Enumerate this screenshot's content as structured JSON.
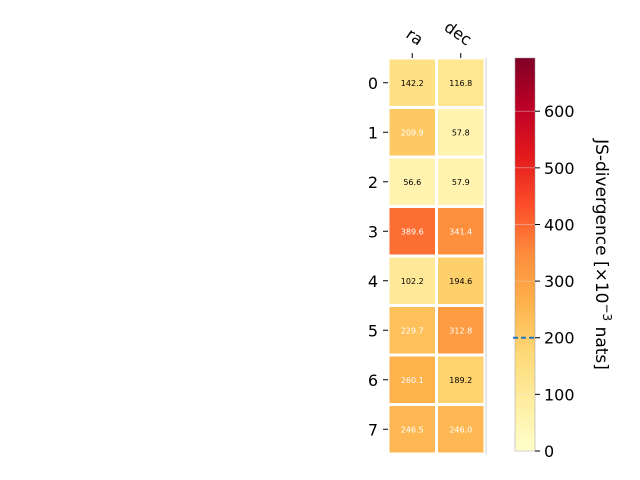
{
  "chart_data": {
    "type": "heatmap",
    "columns": [
      "ra",
      "dec"
    ],
    "rows": [
      "0",
      "1",
      "2",
      "3",
      "4",
      "5",
      "6",
      "7"
    ],
    "values": [
      [
        142.2,
        116.8
      ],
      [
        209.9,
        57.8
      ],
      [
        56.6,
        57.9
      ],
      [
        389.6,
        341.4
      ],
      [
        102.2,
        194.6
      ],
      [
        229.7,
        312.8
      ],
      [
        260.1,
        189.2
      ],
      [
        246.5,
        246.0
      ]
    ],
    "cell_labels": [
      [
        "142.2",
        "116.8"
      ],
      [
        "209.9",
        "57.8"
      ],
      [
        "56.6",
        "57.9"
      ],
      [
        "389.6",
        "341.4"
      ],
      [
        "102.2",
        "194.6"
      ],
      [
        "229.7",
        "312.8"
      ],
      [
        "260.1",
        "189.2"
      ],
      [
        "246.5",
        "246.0"
      ]
    ],
    "colorbar": {
      "label_main": "JS-divergence [×10",
      "label_exp": "−3",
      "label_unit": " nats]",
      "range": [
        0,
        694
      ],
      "ticks": [
        "0",
        "100",
        "200",
        "300",
        "400",
        "500",
        "600"
      ],
      "tick_values": [
        0,
        100,
        200,
        300,
        400,
        500,
        600
      ],
      "colormap": "YlOrRd",
      "reference_line": 200,
      "reference_line_color": "#1f77b4"
    },
    "grid": false
  }
}
